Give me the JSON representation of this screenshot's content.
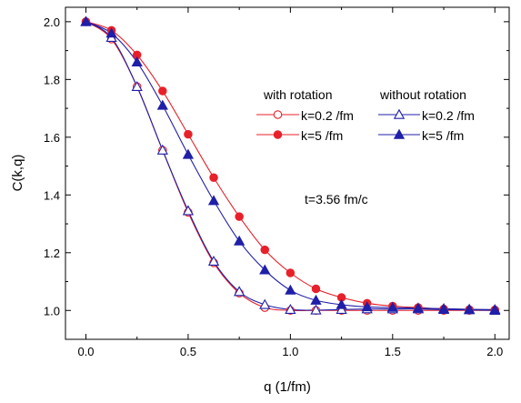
{
  "chart_data": {
    "type": "line",
    "xlabel": "q (1/fm)",
    "ylabel": "C(k,q)",
    "xlim": [
      -0.1,
      2.07
    ],
    "ylim": [
      0.9,
      2.05
    ],
    "xticks": [
      0.0,
      0.5,
      1.0,
      1.5,
      2.0
    ],
    "xtick_labels": [
      "0.0",
      "0.5",
      "1.0",
      "1.5",
      "2.0"
    ],
    "yticks": [
      1.0,
      1.2,
      1.4,
      1.6,
      1.8,
      2.0
    ],
    "ytick_labels": [
      "1.0",
      "1.2",
      "1.4",
      "1.6",
      "1.8",
      "2.0"
    ],
    "x": [
      0.0,
      0.125,
      0.25,
      0.375,
      0.5,
      0.625,
      0.75,
      0.875,
      1.0,
      1.125,
      1.25,
      1.375,
      1.5,
      1.625,
      1.75,
      1.875,
      2.0
    ],
    "series": [
      {
        "name": "k=0.2 /fm",
        "group": "with rotation",
        "color": "#e8202a",
        "marker": "circle-open",
        "values": [
          2.0,
          1.94,
          1.775,
          1.555,
          1.34,
          1.165,
          1.06,
          1.01,
          1.0,
          1.0,
          1.0,
          1.0,
          1.0,
          1.0,
          1.0,
          1.0,
          1.0
        ]
      },
      {
        "name": "k=5 /fm",
        "group": "with rotation",
        "color": "#e8202a",
        "marker": "circle-filled",
        "values": [
          2.0,
          1.97,
          1.885,
          1.76,
          1.61,
          1.46,
          1.325,
          1.21,
          1.13,
          1.075,
          1.045,
          1.025,
          1.015,
          1.01,
          1.005,
          1.003,
          1.002
        ]
      },
      {
        "name": "k=0.2 /fm",
        "group": "without rotation",
        "color": "#1f1fa8",
        "marker": "triangle-open",
        "values": [
          2.0,
          1.945,
          1.775,
          1.555,
          1.345,
          1.17,
          1.065,
          1.02,
          1.003,
          1.001,
          1.003,
          1.005,
          1.005,
          1.005,
          1.003,
          1.002,
          1.0
        ]
      },
      {
        "name": "k=5 /fm",
        "group": "without rotation",
        "color": "#1f1fa8",
        "marker": "triangle-filled",
        "values": [
          2.0,
          1.96,
          1.86,
          1.71,
          1.54,
          1.38,
          1.24,
          1.14,
          1.07,
          1.035,
          1.02,
          1.012,
          1.01,
          1.008,
          1.006,
          1.004,
          1.003
        ]
      }
    ],
    "legend": {
      "placement": "top-right",
      "group_titles": [
        "with rotation",
        "without rotation"
      ]
    },
    "annotation": "t=3.56 fm/c",
    "grid": false
  }
}
